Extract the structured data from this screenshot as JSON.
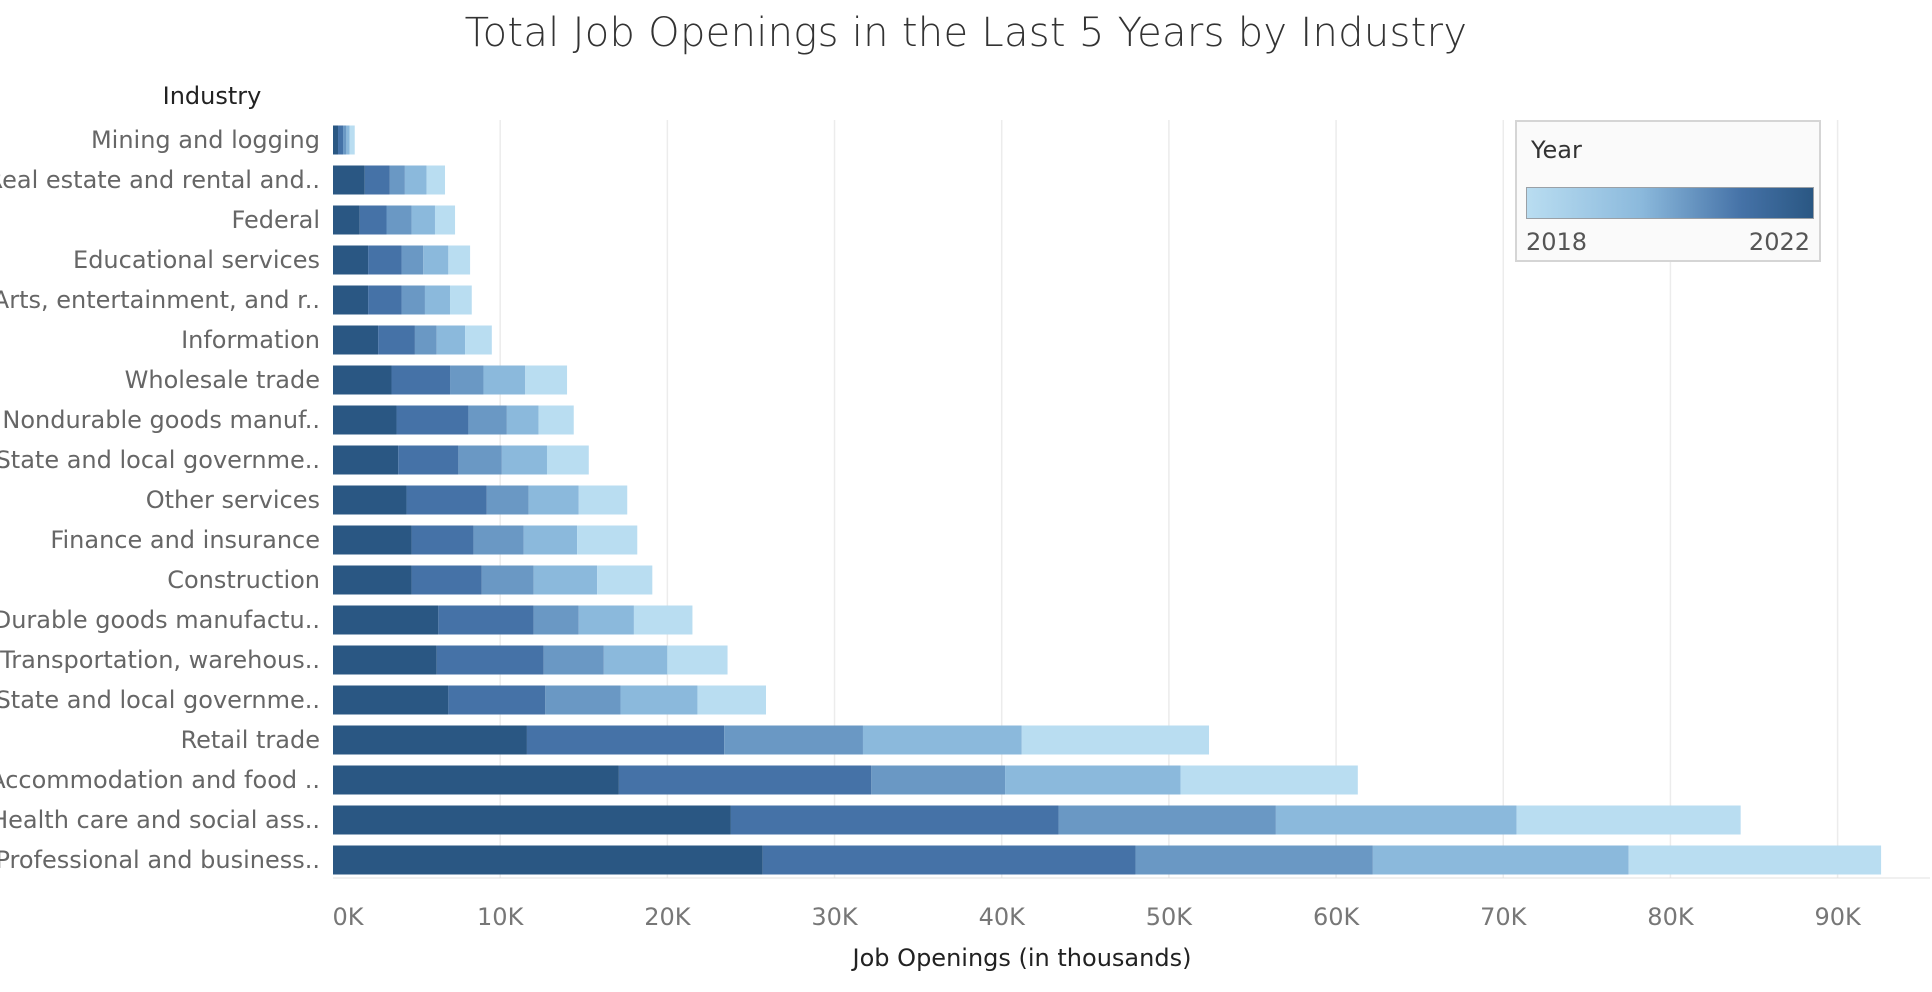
{
  "chart_data": {
    "type": "bar",
    "orientation": "horizontal",
    "stacked": true,
    "title": "Total Job Openings in the Last 5 Years by Industry",
    "row_header": "Industry",
    "xlabel": "Job Openings (in thousands)",
    "xlim": [
      0,
      95000
    ],
    "x_ticks": [
      0,
      10000,
      20000,
      30000,
      40000,
      50000,
      60000,
      70000,
      80000,
      90000
    ],
    "x_tick_labels": [
      "0K",
      "10K",
      "20K",
      "30K",
      "40K",
      "50K",
      "60K",
      "70K",
      "80K",
      "90K"
    ],
    "grid": "vertical",
    "legend": {
      "title": "Year",
      "placement": "top-right",
      "min_label": "2018",
      "max_label": "2022",
      "color_min": "#b9ddf1",
      "color_max": "#2a5783"
    },
    "categories": [
      "Mining and logging",
      "Real estate and rental and..",
      "Federal",
      "Educational services",
      "Arts, entertainment, and r..",
      "Information",
      "Wholesale trade",
      "Nondurable goods manuf..",
      "State and local governme..",
      "Other services",
      "Finance and insurance",
      "Construction",
      "Durable goods manufactu..",
      "Transportation, warehous..",
      "State and local governme..",
      "Retail trade",
      "Accommodation and food ..",
      "Health care and social ass..",
      "Professional and business.."
    ],
    "series": [
      {
        "year": 2022,
        "color": "#2a5783",
        "values": [
          300,
          1900,
          1600,
          2100,
          2100,
          2700,
          3500,
          3800,
          3900,
          4400,
          4700,
          4700,
          6300,
          6200,
          6900,
          11600,
          17100,
          23800,
          25700
        ]
      },
      {
        "year": 2021,
        "color": "#4572a7",
        "values": [
          300,
          1500,
          1600,
          2000,
          2000,
          2200,
          3500,
          4300,
          3600,
          4800,
          3700,
          4200,
          5700,
          6400,
          5800,
          11800,
          15100,
          19600,
          22300
        ]
      },
      {
        "year": 2020,
        "color": "#6a98c4",
        "values": [
          200,
          900,
          1500,
          1300,
          1400,
          1300,
          2000,
          2300,
          2600,
          2500,
          3000,
          3100,
          2700,
          3600,
          4500,
          8300,
          8000,
          13000,
          14200
        ]
      },
      {
        "year": 2019,
        "color": "#8bb9dc",
        "values": [
          200,
          1300,
          1400,
          1500,
          1500,
          1700,
          2500,
          1900,
          2700,
          3000,
          3200,
          3800,
          3300,
          3800,
          4600,
          9500,
          10500,
          14400,
          15300
        ]
      },
      {
        "year": 2018,
        "color": "#b9ddf1",
        "values": [
          300,
          1100,
          1200,
          1300,
          1300,
          1600,
          2500,
          2100,
          2500,
          2900,
          3600,
          3300,
          3500,
          3600,
          4100,
          11200,
          10600,
          13400,
          15100
        ]
      }
    ]
  }
}
